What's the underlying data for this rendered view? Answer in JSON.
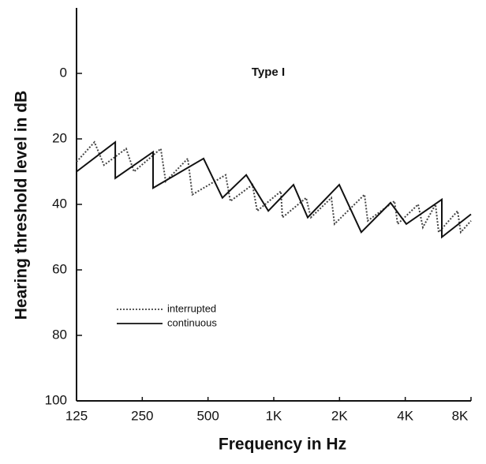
{
  "chart_data": {
    "type": "line",
    "annotations": [
      "Type I"
    ],
    "x_label": "Frequency in Hz",
    "y_label": "Hearing threshold level in dB",
    "x_scale": "log",
    "xlim": [
      125,
      8000
    ],
    "xticks": [
      125,
      250,
      500,
      {
        "value": 1000,
        "label": "1K"
      },
      {
        "value": 2000,
        "label": "2K"
      },
      {
        "value": 4000,
        "label": "4K"
      },
      {
        "value": 8000,
        "label": "8K"
      }
    ],
    "ylim": [
      100,
      -20
    ],
    "yticks": [
      0,
      20,
      40,
      60,
      80,
      100
    ],
    "grid": false,
    "legend": "lower left",
    "series": [
      {
        "name": "interrupted",
        "color": "#444",
        "style": "dotted",
        "x": [
          125,
          151,
          167,
          211,
          229,
          304,
          320,
          404,
          424,
          602,
          633,
          799,
          840,
          1078,
          1096,
          1406,
          1478,
          1835,
          1897,
          2602,
          2692,
          3570,
          3692,
          4582,
          4818,
          5501,
          5689,
          6946,
          7180,
          8000
        ],
        "values": [
          27,
          21,
          28,
          23,
          30,
          23,
          33,
          26,
          37,
          31,
          39,
          34,
          42,
          36,
          44,
          38,
          44,
          38,
          46,
          37,
          45,
          39,
          46,
          40,
          47,
          40,
          48.5,
          42,
          48.5,
          45
        ]
      },
      {
        "name": "continuous",
        "color": "#111",
        "style": "solid",
        "x": [
          125,
          188,
          188,
          280,
          280,
          477,
          582,
          748,
          944,
          1231,
          1430,
          1995,
          2516,
          3425,
          4045,
          5880,
          5880,
          8000
        ],
        "values": [
          30,
          21,
          32,
          24,
          35,
          26,
          38,
          31,
          42,
          34,
          44,
          34,
          48.5,
          39.5,
          46,
          38.5,
          50,
          43
        ]
      }
    ]
  }
}
